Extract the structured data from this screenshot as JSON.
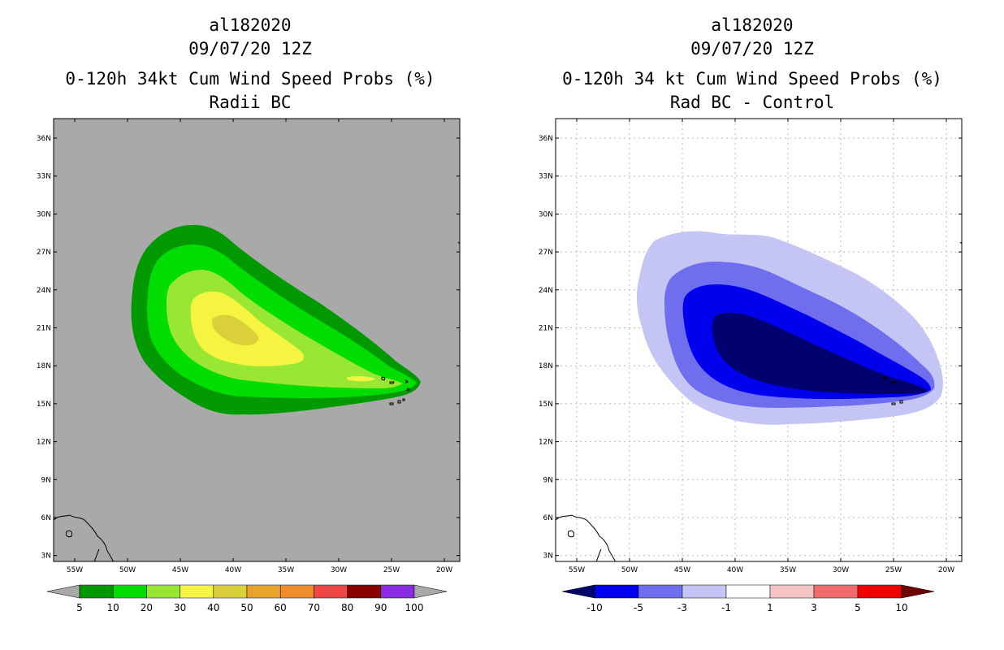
{
  "left_panel": {
    "storm_id": "al182020",
    "datetime": "09/07/20 12Z",
    "title": "0-120h 34kt Cum Wind Speed Probs (%)",
    "subtitle": "Radii BC",
    "background_color": "#a9a9a9",
    "colorbar": {
      "colors": [
        "#009900",
        "#00dd00",
        "#99e633",
        "#f5f541",
        "#dbd03a",
        "#e6a52a",
        "#f08b2a",
        "#f04646",
        "#8b0000",
        "#8a2be2"
      ],
      "labels": [
        "5",
        "10",
        "20",
        "30",
        "40",
        "50",
        "60",
        "70",
        "80",
        "90",
        "100"
      ],
      "under_color": "#a9a9a9",
      "over_color": "#a9a9a9"
    }
  },
  "right_panel": {
    "storm_id": "al182020",
    "datetime": "09/07/20 12Z",
    "title": "0-120h 34 kt Cum Wind Speed Probs (%)",
    "subtitle": "Rad BC - Control",
    "background_color": "#ffffff",
    "colorbar": {
      "colors": [
        "#0000ee",
        "#6e6eee",
        "#c4c4f5",
        "#ffffff",
        "#f5c4c4",
        "#f46a6a",
        "#ee0000"
      ],
      "labels": [
        "-10",
        "-5",
        "-3",
        "-1",
        "1",
        "3",
        "5",
        "10"
      ],
      "under_color": "#00006e",
      "over_color": "#6e0000"
    }
  },
  "axes": {
    "lat_labels": [
      "36N",
      "33N",
      "30N",
      "27N",
      "24N",
      "21N",
      "18N",
      "15N",
      "12N",
      "9N",
      "6N",
      "3N"
    ],
    "lon_labels": [
      "55W",
      "50W",
      "45W",
      "40W",
      "35W",
      "30W",
      "25W",
      "20W"
    ]
  }
}
